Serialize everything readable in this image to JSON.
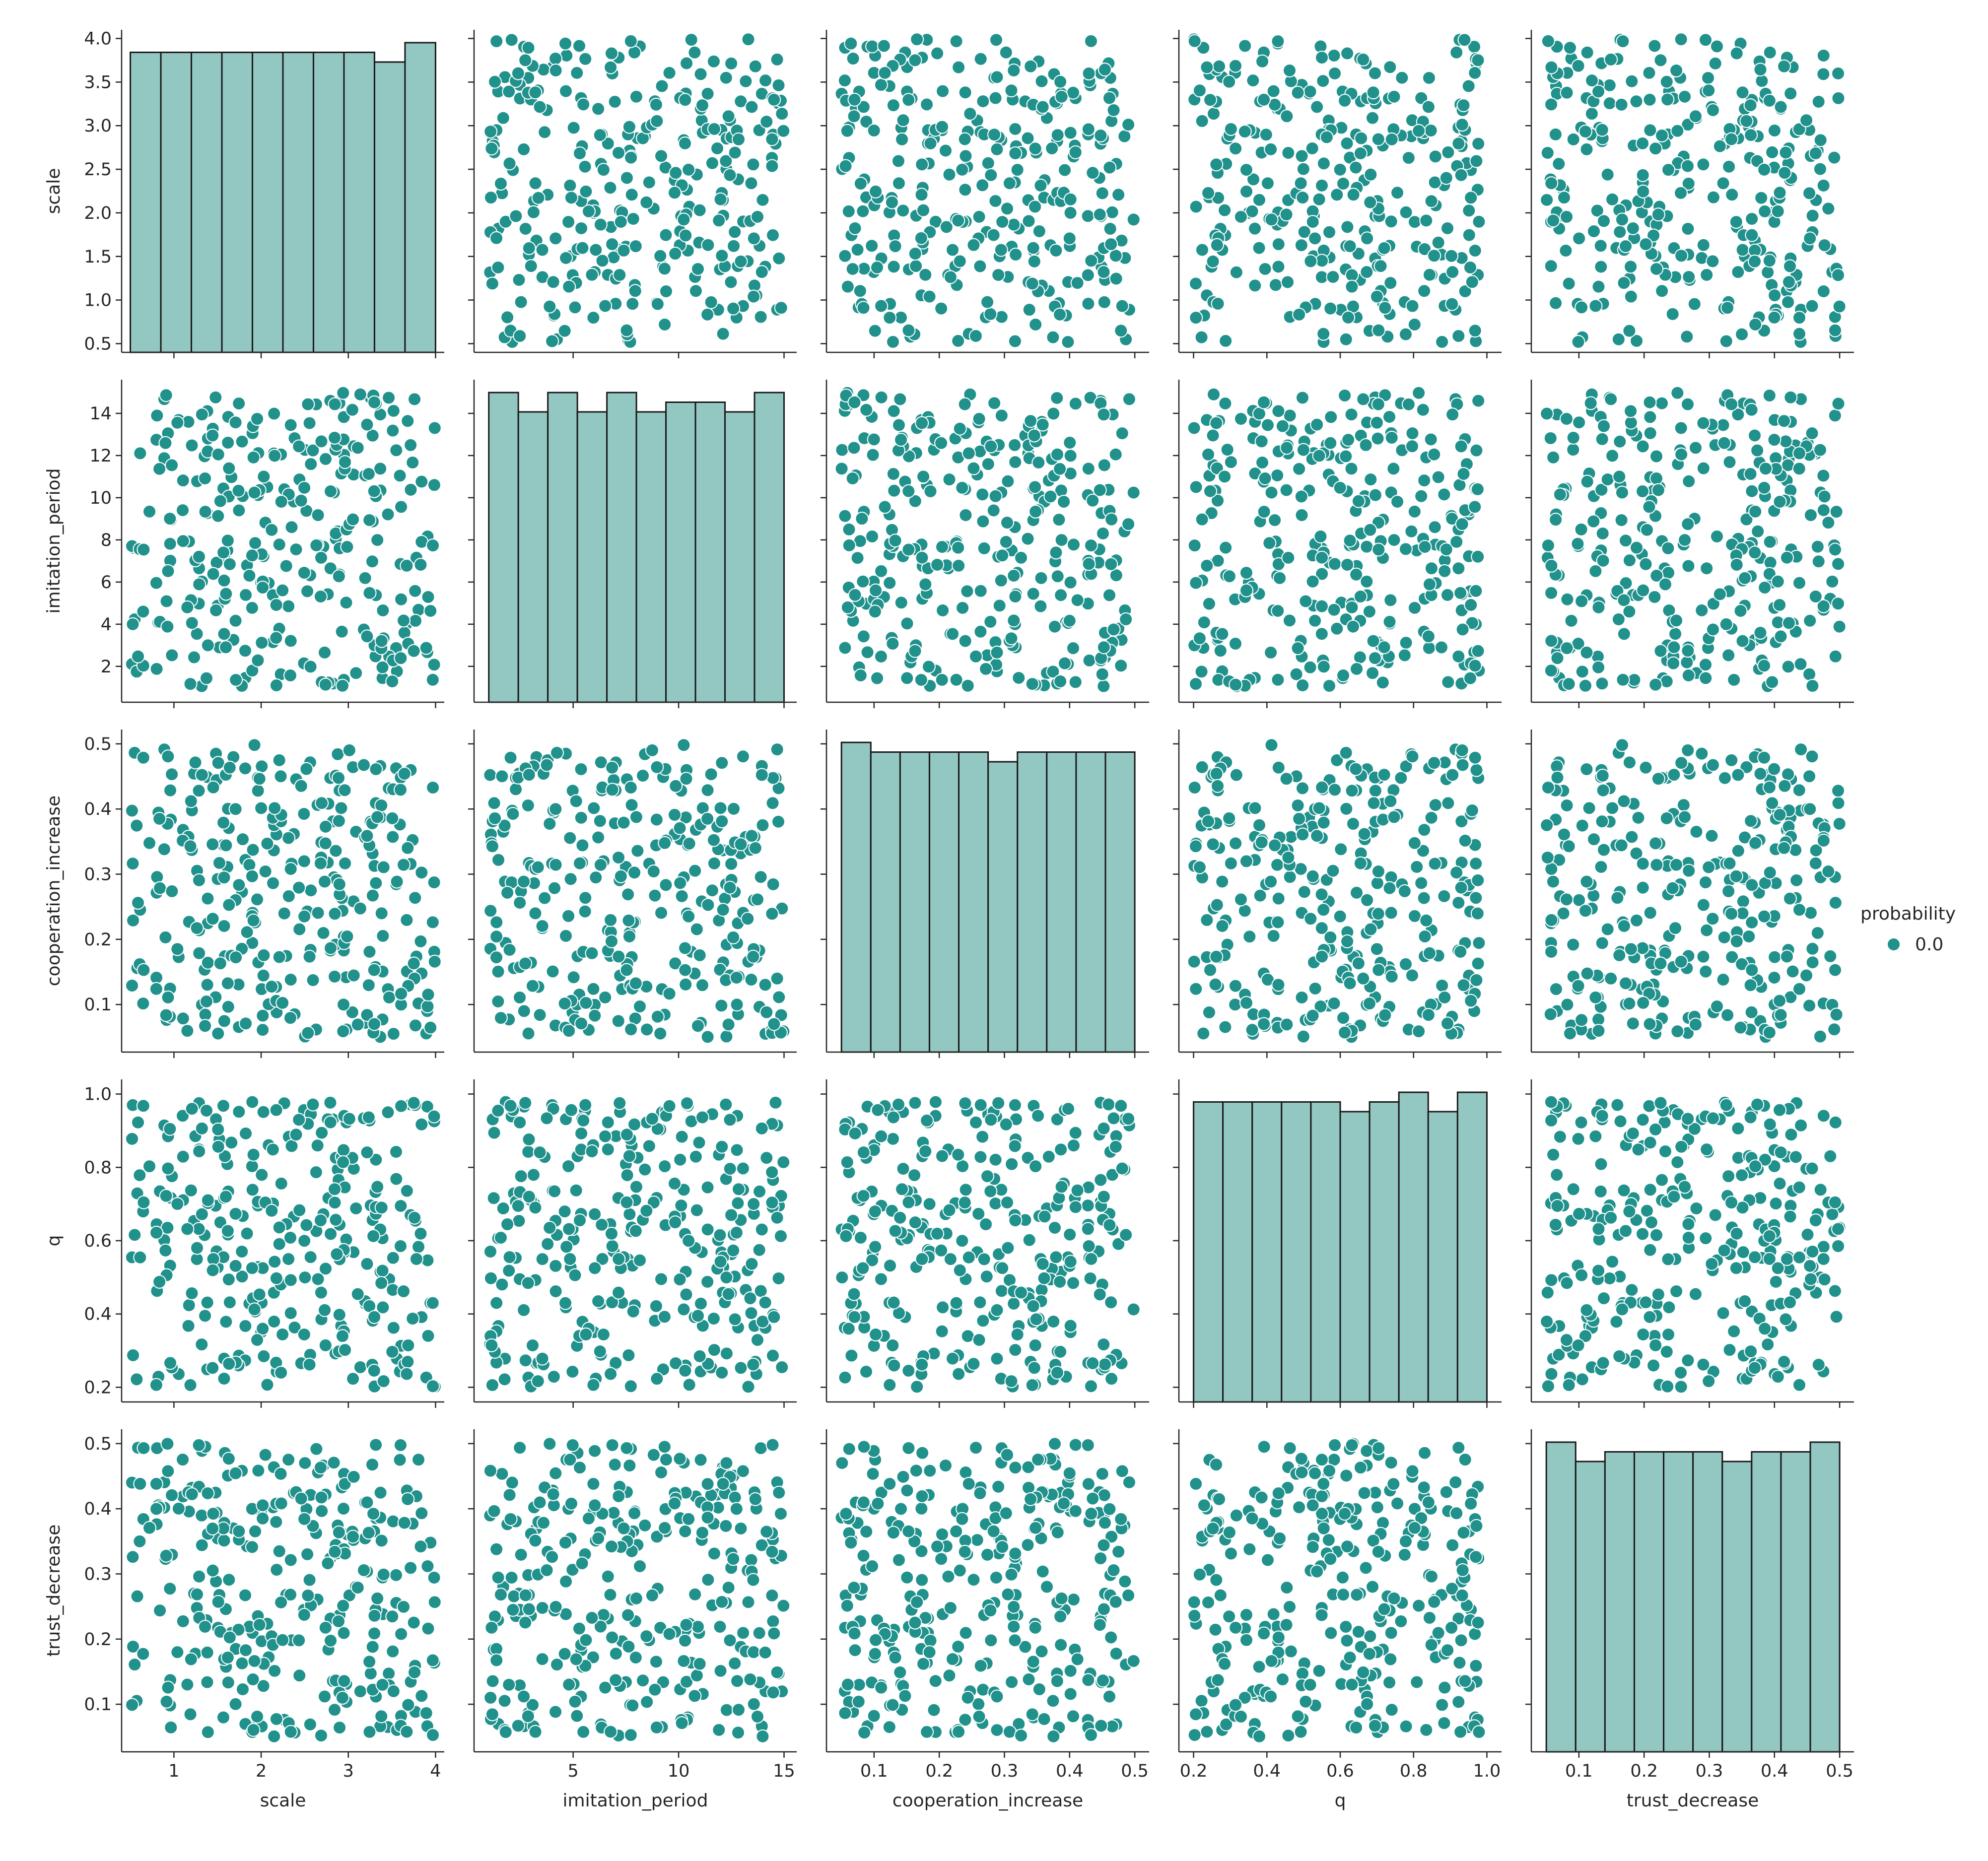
{
  "chart_data": {
    "type": "scatter",
    "kind": "pairplot",
    "variables": [
      "scale",
      "imitation_period",
      "cooperation_increase",
      "q",
      "trust_decrease"
    ],
    "diagonal": "histogram",
    "marker_color": "#21918c",
    "hist_fill": "#93c7c2",
    "legend": {
      "title": "probability",
      "entries": [
        {
          "label": "0.0",
          "color": "#21918c"
        }
      ],
      "placement": "right"
    },
    "axes": [
      {
        "name": "scale",
        "label": "scale",
        "range": [
          0.4,
          4.1
        ],
        "ticks": [
          0.5,
          1.0,
          1.5,
          2.0,
          2.5,
          3.0,
          3.5,
          4.0
        ],
        "y_tick_labels": [
          "0.5",
          "1.0",
          "1.5",
          "2.0",
          "2.5",
          "3.0",
          "3.5",
          "4.0"
        ],
        "x_ticks": [
          1,
          2,
          3,
          4
        ],
        "x_tick_labels": [
          "1",
          "2",
          "3",
          "4"
        ]
      },
      {
        "name": "imitation_period",
        "label": "imitation_period",
        "range": [
          0.3,
          15.6
        ],
        "ticks": [
          2,
          4,
          6,
          8,
          10,
          12,
          14
        ],
        "y_tick_labels": [
          "2",
          "4",
          "6",
          "8",
          "10",
          "12",
          "14"
        ],
        "x_ticks": [
          5,
          10,
          15
        ],
        "x_tick_labels": [
          "5",
          "10",
          "15"
        ]
      },
      {
        "name": "cooperation_increase",
        "label": "cooperation_increase",
        "range": [
          0.027,
          0.522
        ],
        "ticks": [
          0.1,
          0.2,
          0.3,
          0.4,
          0.5
        ],
        "y_tick_labels": [
          "0.1",
          "0.2",
          "0.3",
          "0.4",
          "0.5"
        ],
        "x_ticks": [
          0.1,
          0.2,
          0.3,
          0.4,
          0.5
        ],
        "x_tick_labels": [
          "0.1",
          "0.2",
          "0.3",
          "0.4",
          "0.5"
        ]
      },
      {
        "name": "q",
        "label": "q",
        "range": [
          0.16,
          1.04
        ],
        "ticks": [
          0.2,
          0.4,
          0.6,
          0.8,
          1.0
        ],
        "y_tick_labels": [
          "0.2",
          "0.4",
          "0.6",
          "0.8",
          "1.0"
        ],
        "x_ticks": [
          0.2,
          0.4,
          0.6,
          0.8,
          1.0
        ],
        "x_tick_labels": [
          "0.2",
          "0.4",
          "0.6",
          "0.8",
          "1.0"
        ]
      },
      {
        "name": "trust_decrease",
        "label": "trust_decrease",
        "range": [
          0.027,
          0.522
        ],
        "ticks": [
          0.1,
          0.2,
          0.3,
          0.4,
          0.5
        ],
        "y_tick_labels": [
          "0.1",
          "0.2",
          "0.3",
          "0.4",
          "0.5"
        ],
        "x_ticks": [
          0.1,
          0.2,
          0.3,
          0.4,
          0.5
        ],
        "x_tick_labels": [
          "0.1",
          "0.2",
          "0.3",
          "0.4",
          "0.5"
        ]
      }
    ],
    "histograms": [
      {
        "variable": "scale",
        "bin_edges": [
          0.5,
          0.85,
          1.2,
          1.55,
          1.9,
          2.25,
          2.6,
          2.95,
          3.3,
          3.65,
          4.0
        ],
        "heights": [
          0.93,
          0.93,
          0.93,
          0.93,
          0.93,
          0.93,
          0.93,
          0.93,
          0.9,
          0.96
        ]
      },
      {
        "variable": "imitation_period",
        "bin_edges": [
          1.0,
          2.4,
          3.8,
          5.2,
          6.6,
          8.0,
          9.4,
          10.8,
          12.2,
          13.6,
          15.0
        ],
        "heights": [
          0.96,
          0.9,
          0.96,
          0.9,
          0.96,
          0.9,
          0.93,
          0.93,
          0.9,
          0.96
        ]
      },
      {
        "variable": "cooperation_increase",
        "bin_edges": [
          0.05,
          0.095,
          0.14,
          0.185,
          0.23,
          0.275,
          0.32,
          0.365,
          0.41,
          0.455,
          0.5
        ],
        "heights": [
          0.96,
          0.93,
          0.93,
          0.93,
          0.93,
          0.9,
          0.93,
          0.93,
          0.93,
          0.93
        ]
      },
      {
        "variable": "q",
        "bin_edges": [
          0.2,
          0.28,
          0.36,
          0.44,
          0.52,
          0.6,
          0.68,
          0.76,
          0.84,
          0.92,
          1.0
        ],
        "heights": [
          0.93,
          0.93,
          0.93,
          0.93,
          0.93,
          0.9,
          0.93,
          0.96,
          0.9,
          0.96
        ]
      },
      {
        "variable": "trust_decrease",
        "bin_edges": [
          0.05,
          0.095,
          0.14,
          0.185,
          0.23,
          0.275,
          0.32,
          0.365,
          0.41,
          0.455,
          0.5
        ],
        "heights": [
          0.96,
          0.9,
          0.93,
          0.93,
          0.93,
          0.93,
          0.9,
          0.93,
          0.93,
          0.96
        ]
      }
    ],
    "samples": {
      "count": 300,
      "note_random_uniform": true
    }
  }
}
